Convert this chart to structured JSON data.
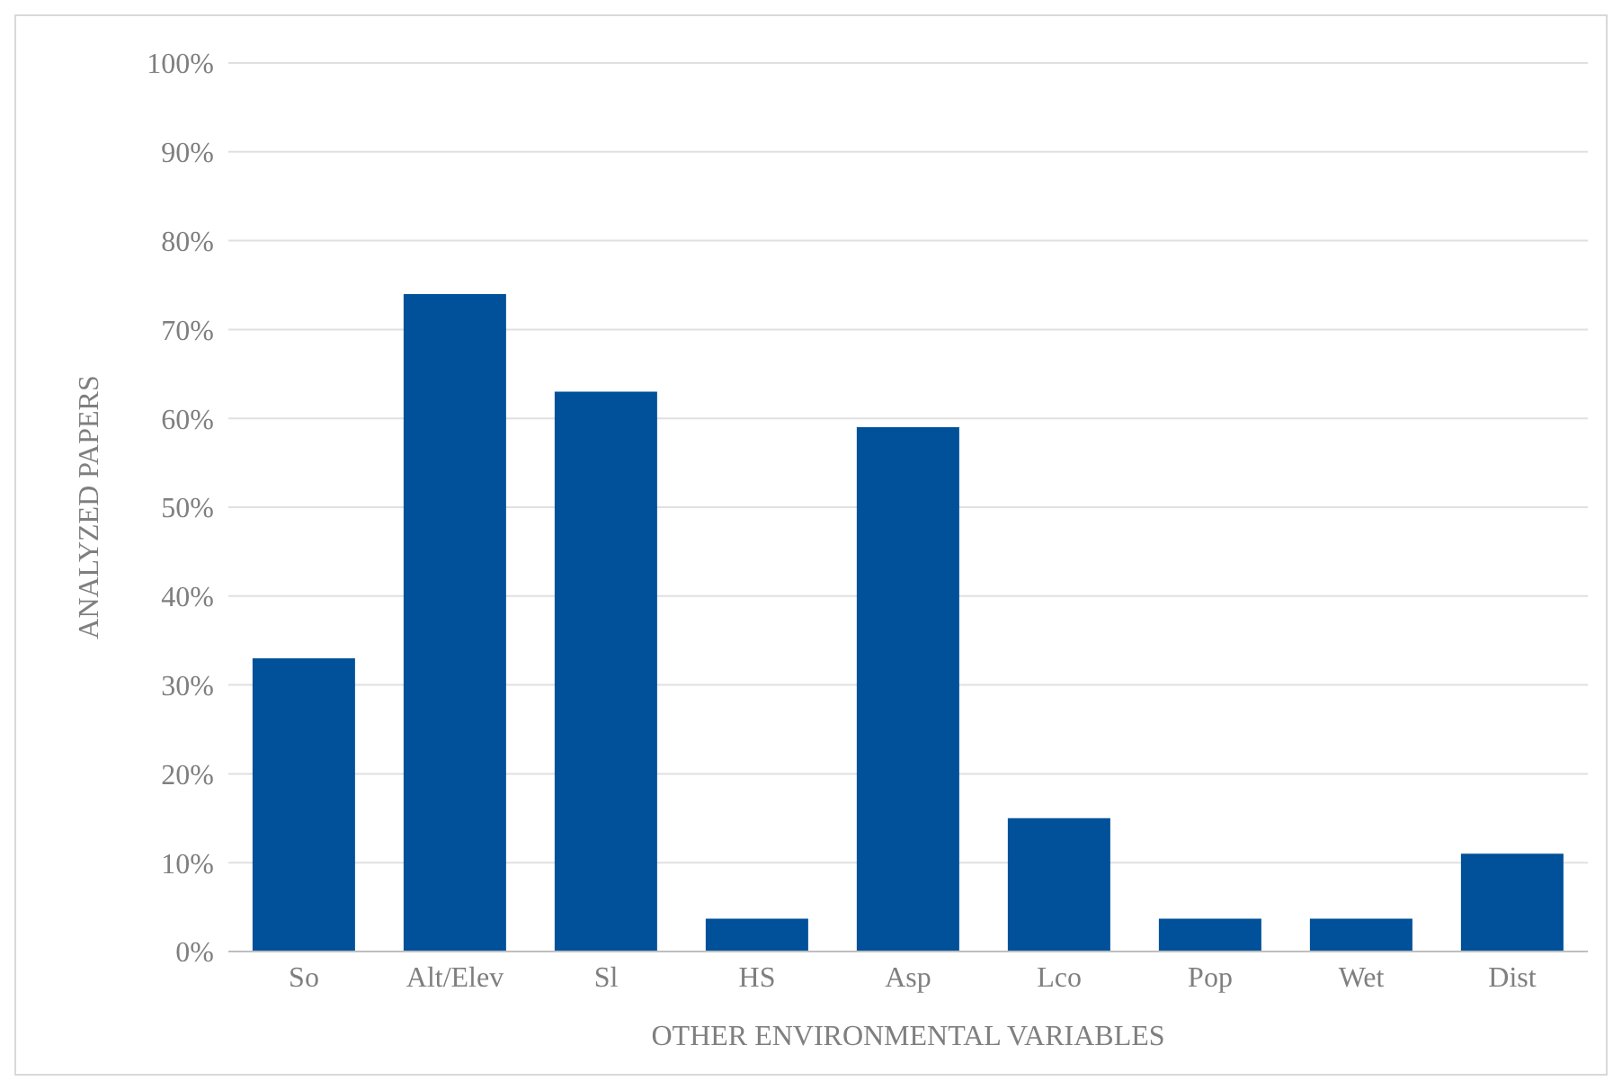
{
  "chart_data": {
    "type": "bar",
    "xlabel": "OTHER ENVIRONMENTAL VARIABLES",
    "ylabel": "ANALYZED PAPERS",
    "categories": [
      "So",
      "Alt/Elev",
      "Sl",
      "HS",
      "Asp",
      "Lco",
      "Pop",
      "Wet",
      "Dist"
    ],
    "values": [
      33,
      74,
      63,
      3.7,
      59,
      15,
      3.7,
      3.7,
      11
    ],
    "color": "#00519a",
    "ylim": [
      0,
      100
    ],
    "yticks": [
      {
        "value": 0,
        "label": "0%"
      },
      {
        "value": 10,
        "label": "10%"
      },
      {
        "value": 20,
        "label": "20%"
      },
      {
        "value": 30,
        "label": "30%"
      },
      {
        "value": 40,
        "label": "40%"
      },
      {
        "value": 50,
        "label": "50%"
      },
      {
        "value": 60,
        "label": "60%"
      },
      {
        "value": 70,
        "label": "70%"
      },
      {
        "value": 80,
        "label": "80%"
      },
      {
        "value": 90,
        "label": "90%"
      },
      {
        "value": 100,
        "label": "100%"
      }
    ],
    "grid": "y"
  }
}
